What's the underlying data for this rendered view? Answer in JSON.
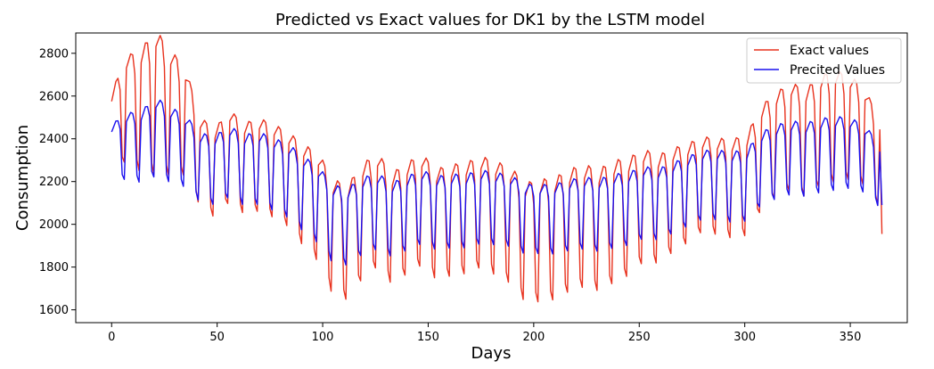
{
  "chart_data": {
    "type": "line",
    "title": "Predicted vs Exact values for DK1 by the LSTM model",
    "xlabel": "Days",
    "ylabel": "Consumption",
    "xlim": [
      -17,
      377
    ],
    "ylim": [
      1540,
      2895
    ],
    "xticks": [
      0,
      50,
      100,
      150,
      200,
      250,
      300,
      350
    ],
    "yticks": [
      1600,
      1800,
      2000,
      2200,
      2400,
      2600,
      2800
    ],
    "grid": false,
    "legend_position": "top-right",
    "series": [
      {
        "name": "Exact values",
        "color": "#e8321e",
        "weekly_anchors": [
          [
            0,
            2470
          ],
          [
            7,
            2600
          ],
          [
            14,
            2600
          ],
          [
            21,
            2650
          ],
          [
            28,
            2590
          ],
          [
            35,
            2540
          ],
          [
            42,
            2340
          ],
          [
            49,
            2290
          ],
          [
            56,
            2370
          ],
          [
            63,
            2310
          ],
          [
            70,
            2330
          ],
          [
            77,
            2300
          ],
          [
            84,
            2260
          ],
          [
            91,
            2190
          ],
          [
            98,
            2140
          ],
          [
            105,
            2000
          ],
          [
            112,
            1980
          ],
          [
            119,
            2080
          ],
          [
            126,
            2130
          ],
          [
            133,
            2040
          ],
          [
            140,
            2090
          ],
          [
            147,
            2130
          ],
          [
            154,
            2060
          ],
          [
            161,
            2080
          ],
          [
            168,
            2090
          ],
          [
            175,
            2120
          ],
          [
            182,
            2090
          ],
          [
            189,
            2060
          ],
          [
            196,
            1980
          ],
          [
            203,
            1990
          ],
          [
            210,
            2000
          ],
          [
            217,
            2040
          ],
          [
            224,
            2060
          ],
          [
            231,
            2040
          ],
          [
            238,
            2080
          ],
          [
            245,
            2100
          ],
          [
            252,
            2150
          ],
          [
            259,
            2130
          ],
          [
            266,
            2170
          ],
          [
            273,
            2200
          ],
          [
            280,
            2240
          ],
          [
            287,
            2230
          ],
          [
            294,
            2220
          ],
          [
            301,
            2240
          ],
          [
            308,
            2370
          ],
          [
            315,
            2430
          ],
          [
            322,
            2470
          ],
          [
            329,
            2440
          ],
          [
            336,
            2500
          ],
          [
            343,
            2520
          ],
          [
            350,
            2510
          ],
          [
            357,
            2460
          ],
          [
            364,
            2330
          ]
        ],
        "weekly_amplitude_anchors": [
          [
            0,
            150
          ],
          [
            21,
            260
          ],
          [
            42,
            160
          ],
          [
            84,
            170
          ],
          [
            105,
            210
          ],
          [
            140,
            200
          ],
          [
            175,
            200
          ],
          [
            203,
            220
          ],
          [
            238,
            220
          ],
          [
            280,
            170
          ],
          [
            315,
            190
          ],
          [
            343,
            200
          ],
          [
            364,
            160
          ]
        ],
        "weekly_pattern": [
          0.7,
          0.85,
          1.0,
          0.95,
          0.5,
          -1.4,
          -1.6
        ],
        "last_value": 1955
      },
      {
        "name": "Precited Values",
        "color": "#1a10ee",
        "weekly_anchors": [
          [
            0,
            2360
          ],
          [
            7,
            2400
          ],
          [
            14,
            2400
          ],
          [
            21,
            2450
          ],
          [
            28,
            2410
          ],
          [
            35,
            2380
          ],
          [
            42,
            2300
          ],
          [
            49,
            2290
          ],
          [
            56,
            2330
          ],
          [
            63,
            2290
          ],
          [
            70,
            2300
          ],
          [
            77,
            2270
          ],
          [
            84,
            2240
          ],
          [
            91,
            2180
          ],
          [
            98,
            2130
          ],
          [
            105,
            2040
          ],
          [
            112,
            2030
          ],
          [
            119,
            2080
          ],
          [
            126,
            2100
          ],
          [
            133,
            2060
          ],
          [
            140,
            2090
          ],
          [
            147,
            2120
          ],
          [
            154,
            2090
          ],
          [
            161,
            2100
          ],
          [
            168,
            2100
          ],
          [
            175,
            2120
          ],
          [
            182,
            2110
          ],
          [
            189,
            2100
          ],
          [
            196,
            2060
          ],
          [
            203,
            2060
          ],
          [
            210,
            2060
          ],
          [
            217,
            2080
          ],
          [
            224,
            2090
          ],
          [
            231,
            2080
          ],
          [
            238,
            2100
          ],
          [
            245,
            2110
          ],
          [
            252,
            2140
          ],
          [
            259,
            2130
          ],
          [
            266,
            2160
          ],
          [
            273,
            2190
          ],
          [
            280,
            2220
          ],
          [
            287,
            2220
          ],
          [
            294,
            2210
          ],
          [
            301,
            2220
          ],
          [
            308,
            2300
          ],
          [
            315,
            2330
          ],
          [
            322,
            2350
          ],
          [
            329,
            2340
          ],
          [
            336,
            2360
          ],
          [
            343,
            2370
          ],
          [
            350,
            2370
          ],
          [
            357,
            2340
          ],
          [
            364,
            2260
          ]
        ],
        "weekly_amplitude_anchors": [
          [
            0,
            120
          ],
          [
            21,
            160
          ],
          [
            42,
            140
          ],
          [
            84,
            150
          ],
          [
            105,
            160
          ],
          [
            140,
            150
          ],
          [
            175,
            150
          ],
          [
            203,
            140
          ],
          [
            238,
            150
          ],
          [
            280,
            140
          ],
          [
            315,
            150
          ],
          [
            343,
            150
          ],
          [
            364,
            130
          ]
        ],
        "weekly_pattern": [
          0.6,
          0.75,
          0.9,
          0.85,
          0.5,
          -1.2,
          -1.4
        ],
        "last_value": 2090
      }
    ]
  }
}
